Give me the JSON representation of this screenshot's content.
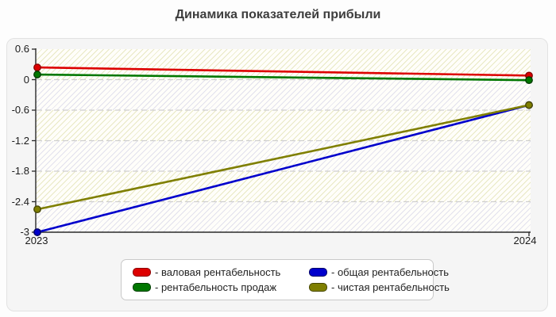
{
  "title": "Динамика показателей прибыли",
  "axis": {
    "y_ticks": [
      "0.6",
      "0",
      "-0.6",
      "-1.2",
      "-1.8",
      "-2.4",
      "-3"
    ],
    "x_ticks": [
      "2023",
      "2024"
    ]
  },
  "legend": {
    "items": [
      {
        "label": "- валовая рентабельность",
        "color": "#dd0000",
        "edge": "#8b0000"
      },
      {
        "label": "- рентабельность продаж",
        "color": "#007700",
        "edge": "#003c00"
      },
      {
        "label": "- общая рентабельность",
        "color": "#0000cc",
        "edge": "#000066"
      },
      {
        "label": "- чистая рентабельность",
        "color": "#7f7f00",
        "edge": "#474700"
      }
    ]
  },
  "chart_data": {
    "type": "line",
    "title": "Динамика показателей прибыли",
    "x": [
      "2023",
      "2024"
    ],
    "series": [
      {
        "name": "валовая рентабельность",
        "color": "#dd0000",
        "edge": "#8b0000",
        "values": [
          0.24,
          0.08
        ]
      },
      {
        "name": "рентабельность продаж",
        "color": "#007700",
        "edge": "#003c00",
        "values": [
          0.1,
          -0.01
        ]
      },
      {
        "name": "общая рентабельность",
        "color": "#0000cc",
        "edge": "#000066",
        "values": [
          -3.0,
          -0.5
        ]
      },
      {
        "name": "чистая рентабельность",
        "color": "#7f7f00",
        "edge": "#474700",
        "values": [
          -2.55,
          -0.5
        ]
      }
    ],
    "ylim": [
      -3,
      0.6
    ],
    "y_tick_step": 0.6,
    "grid": "horizontal-dashed",
    "legend_position": "bottom",
    "marker": "circle"
  }
}
